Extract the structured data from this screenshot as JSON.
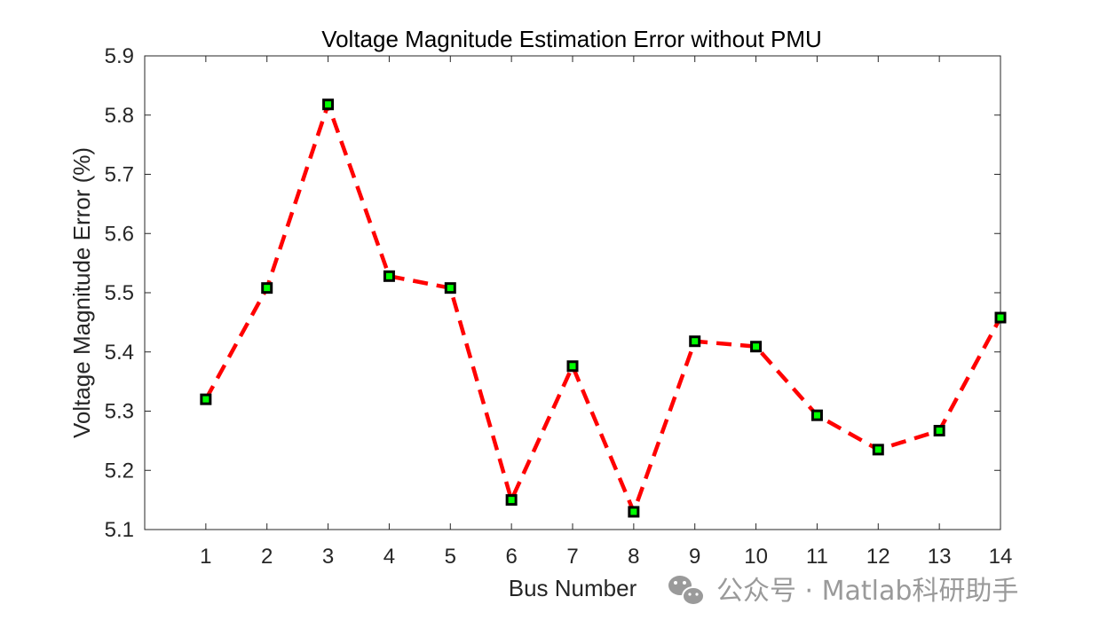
{
  "chart_data": {
    "type": "line",
    "title": "Voltage Magnitude Estimation Error without PMU",
    "xlabel": "Bus Number",
    "ylabel": "Voltage Magnitude Error (%)",
    "x": [
      1,
      2,
      3,
      4,
      5,
      6,
      7,
      8,
      9,
      10,
      11,
      12,
      13,
      14
    ],
    "y": [
      5.32,
      5.508,
      5.818,
      5.528,
      5.508,
      5.15,
      5.376,
      5.13,
      5.418,
      5.409,
      5.293,
      5.235,
      5.267,
      5.458
    ],
    "xticks": [
      "1",
      "2",
      "3",
      "4",
      "5",
      "6",
      "7",
      "8",
      "9",
      "10",
      "11",
      "12",
      "13",
      "14"
    ],
    "yticks": [
      "5.1",
      "5.2",
      "5.3",
      "5.4",
      "5.5",
      "5.6",
      "5.7",
      "5.8",
      "5.9"
    ],
    "xlim": [
      0,
      14
    ],
    "ylim": [
      5.1,
      5.9
    ],
    "grid": false,
    "line_style": "dashed",
    "line_color": "#ff0000",
    "marker": "square",
    "marker_edge_color": "#000000",
    "marker_face_color": "#00ff00"
  },
  "watermark": {
    "text": "公众号 · Matlab科研助手",
    "icon": "wechat-icon"
  }
}
